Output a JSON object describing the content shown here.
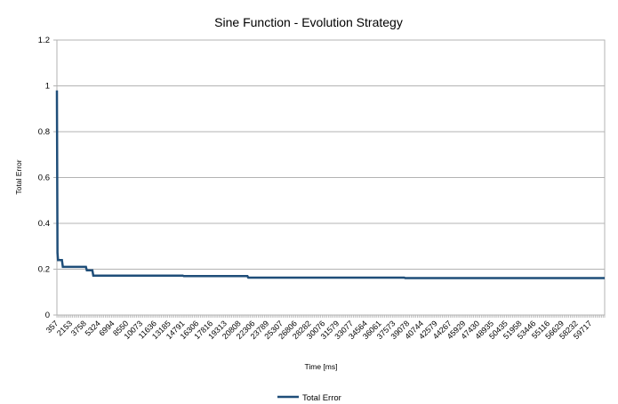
{
  "chart_data": {
    "type": "line",
    "title": "Sine Function - Evolution Strategy",
    "xlabel": "Time [ms]",
    "ylabel": "Total Error",
    "ylim": [
      0,
      1.2
    ],
    "yticks": [
      "0",
      "0.2",
      "0.4",
      "0.6",
      "0.8",
      "1",
      "1.2"
    ],
    "grid": "horizontal",
    "legend": "bottom",
    "x_axis_kind": "category",
    "xlim": [
      357,
      59717
    ],
    "xtick_labels": [
      "357",
      "2153",
      "3758",
      "5324",
      "6994",
      "8550",
      "10073",
      "11636",
      "13185",
      "14791",
      "16306",
      "17816",
      "19313",
      "20808",
      "22306",
      "23789",
      "25307",
      "26806",
      "28282",
      "30076",
      "31579",
      "33077",
      "34564",
      "36061",
      "37573",
      "39078",
      "40744",
      "42579",
      "44267",
      "45929",
      "47430",
      "48935",
      "50435",
      "51958",
      "53446",
      "55116",
      "56629",
      "58232",
      "59717"
    ],
    "series": [
      {
        "name": "Total Error",
        "color": "#1f4e79",
        "points": [
          [
            357,
            0.98
          ],
          [
            420,
            0.27
          ],
          [
            480,
            0.24
          ],
          [
            900,
            0.24
          ],
          [
            1000,
            0.21
          ],
          [
            3500,
            0.21
          ],
          [
            3600,
            0.195
          ],
          [
            4200,
            0.195
          ],
          [
            4300,
            0.172
          ],
          [
            14000,
            0.172
          ],
          [
            14100,
            0.17
          ],
          [
            21000,
            0.17
          ],
          [
            21100,
            0.163
          ],
          [
            38000,
            0.163
          ],
          [
            38100,
            0.161
          ],
          [
            59717,
            0.161
          ]
        ]
      }
    ]
  }
}
